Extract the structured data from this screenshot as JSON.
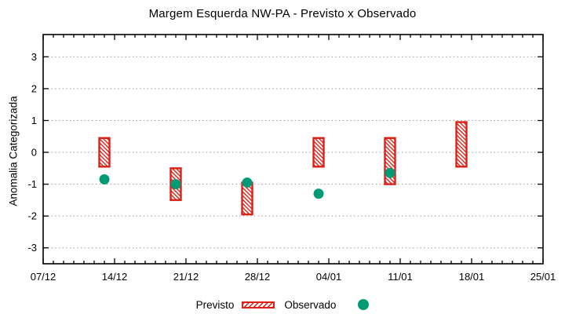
{
  "chart_data": {
    "type": "bar",
    "title": "Margem Esquerda NW-PA - Previsto x Observado",
    "xlabel": "",
    "ylabel": "Anomalia Categorizada",
    "grid": "horizontal-dotted",
    "legend_position": "bottom-center",
    "ylim": [
      -3.5,
      3.7
    ],
    "y_ticks": [
      -3,
      -2,
      -1,
      0,
      1,
      2,
      3
    ],
    "x_range_days": [
      0,
      49
    ],
    "x_minor_step_days": 1,
    "x_tick_days": [
      0,
      7,
      14,
      21,
      28,
      35,
      42,
      49
    ],
    "x_tick_labels": [
      "07/12",
      "14/12",
      "21/12",
      "28/12",
      "04/01",
      "11/01",
      "18/01",
      "25/01"
    ],
    "colors": {
      "previsto": "#dd2016",
      "observado": "#009a74",
      "grid": "#9a9a9a",
      "axis": "#000000",
      "background": "#ffffff"
    },
    "series": [
      {
        "name": "Previsto",
        "type": "range-bar",
        "style": "diagonal-hatch",
        "color": "#dd2016",
        "points": [
          {
            "date": "13/12",
            "day": 6,
            "low": -0.45,
            "high": 0.45
          },
          {
            "date": "20/12",
            "day": 13,
            "low": -1.5,
            "high": -0.5
          },
          {
            "date": "27/12",
            "day": 20,
            "low": -1.95,
            "high": -0.95
          },
          {
            "date": "03/01",
            "day": 27,
            "low": -0.45,
            "high": 0.45
          },
          {
            "date": "10/01",
            "day": 34,
            "low": -1.0,
            "high": 0.45
          },
          {
            "date": "17/01",
            "day": 41,
            "low": -0.45,
            "high": 0.95
          }
        ]
      },
      {
        "name": "Observado",
        "type": "scatter",
        "marker": "filled-circle",
        "color": "#009a74",
        "points": [
          {
            "date": "13/12",
            "day": 6,
            "value": -0.85
          },
          {
            "date": "20/12",
            "day": 13,
            "value": -1.0
          },
          {
            "date": "27/12",
            "day": 20,
            "value": -0.95
          },
          {
            "date": "03/01",
            "day": 27,
            "value": -1.3
          },
          {
            "date": "10/01",
            "day": 34,
            "value": -0.65
          }
        ]
      }
    ]
  }
}
